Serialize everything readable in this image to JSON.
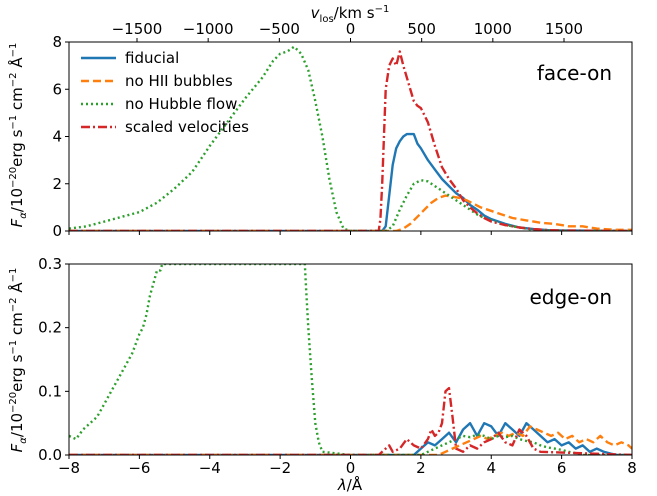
{
  "chart_data": [
    {
      "type": "line",
      "annotation": "face-on",
      "xlim": [
        -8,
        8
      ],
      "ylim": [
        0,
        8
      ],
      "x_ticks": [
        "−8",
        "−6",
        "−4",
        "−2",
        "0",
        "2",
        "4",
        "6",
        "8"
      ],
      "y_ticks": [
        "0",
        "2",
        "4",
        "6",
        "8"
      ],
      "y_tick_values": [
        0,
        2,
        4,
        6,
        8
      ],
      "ylabel": "F_α/10^−20 erg s^−1 cm^−2 Å^−1",
      "top_axis": {
        "label": "v_los/km s^−1",
        "tick_labels": [
          "−1500",
          "−1000",
          "−500",
          "0",
          "500",
          "1000",
          "1500"
        ],
        "tick_values": [
          -1500,
          -1000,
          -500,
          0,
          500,
          1000,
          1500
        ],
        "angstrom_per_kms": 0.004045
      },
      "legend": [
        "fiducial",
        "no HII bubbles",
        "no Hubble flow",
        "scaled velocities"
      ],
      "legend_position": "top-left",
      "series": [
        {
          "name": "fiducial",
          "color": "#1f77b4",
          "style": "solid",
          "x": [
            -8,
            0.9,
            1.0,
            1.1,
            1.2,
            1.3,
            1.4,
            1.5,
            1.6,
            1.7,
            1.8,
            1.9,
            2.0,
            2.2,
            2.4,
            2.6,
            2.8,
            3.0,
            3.2,
            3.4,
            3.6,
            3.8,
            4.0,
            4.4,
            4.8,
            5.2,
            5.6,
            6.0,
            8
          ],
          "y": [
            0,
            0,
            0.2,
            1.5,
            2.8,
            3.5,
            3.8,
            4.0,
            4.1,
            4.1,
            4.1,
            3.7,
            3.5,
            3.0,
            2.6,
            2.2,
            1.9,
            1.6,
            1.4,
            1.1,
            0.9,
            0.65,
            0.5,
            0.3,
            0.15,
            0.08,
            0.04,
            0.02,
            0
          ]
        },
        {
          "name": "no HII bubbles",
          "color": "#ff7f0e",
          "style": "dashed",
          "x": [
            -8,
            1.3,
            1.5,
            1.7,
            1.9,
            2.1,
            2.3,
            2.5,
            2.7,
            2.9,
            3.1,
            3.3,
            3.5,
            3.7,
            3.9,
            4.1,
            4.3,
            4.6,
            5.0,
            5.4,
            5.8,
            6.2,
            6.6,
            7.0,
            7.5,
            8
          ],
          "y": [
            0,
            0,
            0.1,
            0.3,
            0.6,
            0.9,
            1.2,
            1.4,
            1.5,
            1.45,
            1.4,
            1.3,
            1.15,
            1.0,
            0.9,
            0.8,
            0.7,
            0.55,
            0.45,
            0.35,
            0.3,
            0.2,
            0.2,
            0.1,
            0.05,
            0.05
          ]
        },
        {
          "name": "no Hubble flow",
          "color": "#2ca02c",
          "style": "dotted",
          "x": [
            -8,
            -7.5,
            -7,
            -6.5,
            -6,
            -5.5,
            -5,
            -4.5,
            -4,
            -3.5,
            -3,
            -2.5,
            -2.2,
            -2,
            -1.8,
            -1.6,
            -1.4,
            -1.2,
            -1.0,
            -0.8,
            -0.6,
            -0.4,
            -0.2,
            0,
            0.5,
            1.0,
            1.2,
            1.4,
            1.6,
            1.8,
            2.0,
            2.2,
            2.4,
            2.6,
            2.8,
            3.0,
            3.2,
            3.4,
            3.6,
            3.8,
            4.0,
            4.2,
            4.4,
            4.6,
            4.8,
            5.0,
            5.2,
            5.5,
            6,
            8
          ],
          "y": [
            0.1,
            0.2,
            0.4,
            0.6,
            0.8,
            1.2,
            1.8,
            2.5,
            3.6,
            4.6,
            5.6,
            6.5,
            7.2,
            7.5,
            7.6,
            7.8,
            7.5,
            6.8,
            5.5,
            4.0,
            2.2,
            0.8,
            0.1,
            0,
            0,
            0,
            0.2,
            0.9,
            1.5,
            2.0,
            2.15,
            2.1,
            1.9,
            1.7,
            1.5,
            1.3,
            1.1,
            0.9,
            0.7,
            0.55,
            0.45,
            0.35,
            0.25,
            0.2,
            0.15,
            0.1,
            0.05,
            0.03,
            0,
            0
          ]
        },
        {
          "name": "scaled velocities",
          "color": "#d62728",
          "style": "dashdot",
          "x": [
            -8,
            0.8,
            0.85,
            0.9,
            1.0,
            1.1,
            1.2,
            1.3,
            1.4,
            1.5,
            1.6,
            1.7,
            1.8,
            1.9,
            2.0,
            2.2,
            2.4,
            2.6,
            2.8,
            3.0,
            3.2,
            3.4,
            3.6,
            3.8,
            4.0,
            4.4,
            4.8,
            5.2,
            5.6,
            6.0,
            8
          ],
          "y": [
            0,
            0,
            0.5,
            2.0,
            6.0,
            7.0,
            7.3,
            7.0,
            7.6,
            7.0,
            6.5,
            6.0,
            5.5,
            5.3,
            5.2,
            4.6,
            3.6,
            2.7,
            2.2,
            1.8,
            1.3,
            1.0,
            0.75,
            0.55,
            0.4,
            0.25,
            0.15,
            0.08,
            0.04,
            0.02,
            0
          ]
        }
      ]
    },
    {
      "type": "line",
      "annotation": "edge-on",
      "xlim": [
        -8,
        8
      ],
      "ylim": [
        0,
        0.3
      ],
      "x_ticks": [
        "−8",
        "−6",
        "−4",
        "−2",
        "0",
        "2",
        "4",
        "6",
        "8"
      ],
      "y_ticks": [
        "0.0",
        "0.1",
        "0.2",
        "0.3"
      ],
      "y_tick_values": [
        0,
        0.1,
        0.2,
        0.3
      ],
      "xlabel": "λ/Å",
      "ylabel": "F_α/10^−20 erg s^−1 cm^−2 Å^−1",
      "series": [
        {
          "name": "fiducial",
          "color": "#1f77b4",
          "style": "solid",
          "x": [
            -8,
            1.8,
            2.0,
            2.2,
            2.4,
            2.6,
            2.8,
            3.0,
            3.2,
            3.4,
            3.6,
            3.8,
            4.0,
            4.2,
            4.4,
            4.6,
            4.8,
            5.0,
            5.2,
            5.4,
            5.6,
            5.8,
            6.0,
            6.2,
            6.4,
            6.6,
            6.8,
            7.0,
            7.2,
            7.4,
            7.6,
            8
          ],
          "y": [
            0,
            0,
            0.01,
            0.02,
            0.015,
            0.025,
            0.035,
            0.02,
            0.04,
            0.05,
            0.03,
            0.05,
            0.045,
            0.03,
            0.05,
            0.04,
            0.03,
            0.05,
            0.04,
            0.03,
            0.02,
            0.025,
            0.015,
            0.02,
            0.01,
            0.015,
            0.005,
            0.01,
            0.005,
            0.002,
            0,
            0
          ]
        },
        {
          "name": "no HII bubbles",
          "color": "#ff7f0e",
          "style": "dashed",
          "x": [
            -8,
            2.5,
            2.7,
            2.9,
            3.1,
            3.3,
            3.5,
            3.7,
            3.9,
            4.1,
            4.3,
            4.5,
            4.7,
            4.9,
            5.1,
            5.3,
            5.5,
            5.7,
            5.9,
            6.1,
            6.3,
            6.5,
            6.7,
            6.9,
            7.1,
            7.3,
            7.5,
            7.7,
            7.9,
            8
          ],
          "y": [
            0,
            0,
            0.005,
            0.01,
            0.015,
            0.02,
            0.025,
            0.03,
            0.025,
            0.03,
            0.035,
            0.03,
            0.035,
            0.03,
            0.045,
            0.04,
            0.035,
            0.03,
            0.035,
            0.025,
            0.03,
            0.02,
            0.025,
            0.02,
            0.03,
            0.02,
            0.015,
            0.02,
            0.015,
            0.01
          ]
        },
        {
          "name": "no Hubble flow",
          "color": "#2ca02c",
          "style": "dotted",
          "x": [
            -8,
            -7.8,
            -7.6,
            -7.4,
            -7.2,
            -7.0,
            -6.8,
            -6.6,
            -6.4,
            -6.2,
            -6.0,
            -5.9,
            -5.8,
            -5.7,
            -5.6,
            -5.5,
            -5.4,
            -5.35,
            -1.3,
            -1.25,
            -1.2,
            -1.1,
            -1.0,
            -0.9,
            -0.8,
            0,
            2.0,
            2.2,
            2.4,
            2.6,
            2.8,
            3.0,
            3.2,
            3.4,
            3.6,
            3.8,
            4.0,
            4.2,
            4.4,
            4.6,
            4.8,
            5.0,
            5.2,
            5.4,
            5.6,
            5.8,
            6.0,
            6.2,
            6.4,
            6.6,
            8
          ],
          "y": [
            0.03,
            0.025,
            0.04,
            0.05,
            0.06,
            0.08,
            0.1,
            0.12,
            0.14,
            0.16,
            0.19,
            0.2,
            0.22,
            0.25,
            0.27,
            0.29,
            0.29,
            0.3,
            0.3,
            0.25,
            0.2,
            0.12,
            0.05,
            0.02,
            0.005,
            0,
            0,
            0.005,
            0.01,
            0.015,
            0.02,
            0.025,
            0.03,
            0.028,
            0.032,
            0.03,
            0.025,
            0.03,
            0.028,
            0.03,
            0.025,
            0.022,
            0.02,
            0.015,
            0.012,
            0.01,
            0.008,
            0.005,
            0.003,
            0,
            0
          ]
        },
        {
          "name": "scaled velocities",
          "color": "#d62728",
          "style": "dashdot",
          "x": [
            -8,
            0.8,
            0.9,
            1.0,
            1.1,
            1.2,
            1.4,
            1.6,
            1.8,
            2.0,
            2.2,
            2.3,
            2.4,
            2.5,
            2.6,
            2.7,
            2.8,
            2.9,
            3.0,
            3.2,
            3.4,
            3.6,
            3.8,
            4.0,
            4.2,
            4.4,
            4.6,
            4.8,
            5.0,
            5.2,
            5.4,
            8
          ],
          "y": [
            0,
            0,
            0.005,
            0.01,
            0.015,
            0.005,
            0.01,
            0.025,
            0.015,
            0.01,
            0.025,
            0.04,
            0.03,
            0.035,
            0.05,
            0.1,
            0.105,
            0.06,
            0.01,
            0.005,
            0.015,
            0.01,
            0.02,
            0.025,
            0.035,
            0.02,
            0.015,
            0.04,
            0.03,
            0.01,
            0.005,
            0
          ]
        }
      ]
    }
  ]
}
